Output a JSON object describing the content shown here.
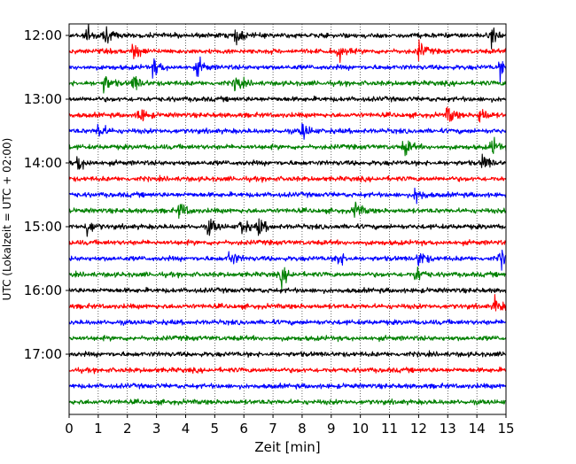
{
  "chart_data": {
    "type": "line",
    "title": "",
    "xlabel": "Zeit  [min]",
    "ylabel": "UTC (Lokalzeit = UTC + 02:00)",
    "xlim": [
      0,
      15
    ],
    "x_ticks": [
      "0",
      "1",
      "2",
      "3",
      "4",
      "5",
      "6",
      "7",
      "8",
      "9",
      "10",
      "11",
      "12",
      "13",
      "14",
      "15"
    ],
    "y_tick_labels": [
      "12:00",
      "13:00",
      "14:00",
      "15:00",
      "16:00",
      "17:00"
    ],
    "grid": "vertical dotted lines at each minute",
    "trace_interval_minutes": 15,
    "trace_colors": [
      "#000000",
      "#ff0000",
      "#0000ff",
      "#008000"
    ],
    "traces": [
      {
        "start": "12:00",
        "color": "#000000",
        "events": [
          0.6,
          1.2,
          5.7,
          14.5
        ]
      },
      {
        "start": "12:15",
        "color": "#ff0000",
        "events": [
          2.2,
          9.2,
          12.0
        ]
      },
      {
        "start": "12:30",
        "color": "#0000ff",
        "events": [
          2.9,
          4.4,
          14.8
        ]
      },
      {
        "start": "12:45",
        "color": "#008000",
        "events": [
          1.2,
          2.2,
          5.7
        ]
      },
      {
        "start": "13:00",
        "color": "#000000",
        "events": []
      },
      {
        "start": "13:15",
        "color": "#ff0000",
        "events": [
          2.4,
          13.0,
          14.1
        ]
      },
      {
        "start": "13:30",
        "color": "#0000ff",
        "events": [
          1.0,
          8.0
        ]
      },
      {
        "start": "13:45",
        "color": "#008000",
        "events": [
          11.5,
          14.5
        ]
      },
      {
        "start": "14:00",
        "color": "#000000",
        "events": [
          0.3,
          14.2
        ]
      },
      {
        "start": "14:15",
        "color": "#ff0000",
        "events": []
      },
      {
        "start": "14:30",
        "color": "#0000ff",
        "events": [
          11.9
        ]
      },
      {
        "start": "14:45",
        "color": "#008000",
        "events": [
          3.8,
          9.8
        ]
      },
      {
        "start": "15:00",
        "color": "#000000",
        "events": [
          0.6,
          4.8,
          5.9,
          6.5
        ]
      },
      {
        "start": "15:15",
        "color": "#ff0000",
        "events": []
      },
      {
        "start": "15:30",
        "color": "#0000ff",
        "events": [
          5.5,
          9.2,
          12.0,
          14.8
        ]
      },
      {
        "start": "15:45",
        "color": "#008000",
        "events": [
          7.3,
          11.9
        ]
      },
      {
        "start": "16:00",
        "color": "#000000",
        "events": []
      },
      {
        "start": "16:15",
        "color": "#ff0000",
        "events": [
          14.6
        ]
      },
      {
        "start": "16:30",
        "color": "#0000ff",
        "events": []
      },
      {
        "start": "16:45",
        "color": "#008000",
        "events": []
      },
      {
        "start": "17:00",
        "color": "#000000",
        "events": []
      },
      {
        "start": "17:15",
        "color": "#ff0000",
        "events": []
      },
      {
        "start": "17:30",
        "color": "#0000ff",
        "events": []
      },
      {
        "start": "17:45",
        "color": "#008000",
        "events": []
      }
    ]
  }
}
